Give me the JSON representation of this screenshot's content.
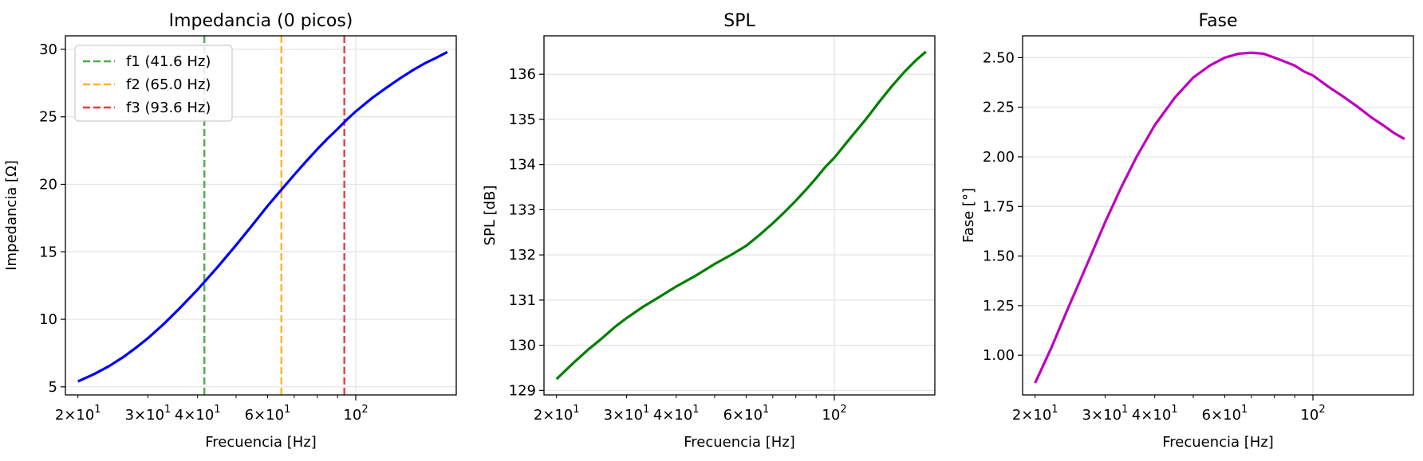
{
  "chart_data": [
    {
      "type": "line",
      "title": "Impedancia (0 picos)",
      "xlabel": "Frecuencia [Hz]",
      "ylabel": "Impedancia [Ω]",
      "xscale": "log",
      "xlim": [
        18.6,
        179
      ],
      "ylim": [
        4.4,
        31.0
      ],
      "yticks": [
        5,
        10,
        15,
        20,
        25,
        30
      ],
      "xtick_labels": [
        {
          "value": 20,
          "mantissa": "2",
          "exp": "1"
        },
        {
          "value": 30,
          "mantissa": "3",
          "exp": "1"
        },
        {
          "value": 40,
          "mantissa": "4",
          "exp": "1"
        },
        {
          "value": 60,
          "mantissa": "6",
          "exp": "1"
        },
        {
          "value": 100,
          "mantissa": "",
          "exp": "2"
        }
      ],
      "grid": true,
      "legend_position": "top-left",
      "series": [
        {
          "color": "#0000ff",
          "x": [
            20,
            22,
            24,
            26,
            28,
            30,
            33,
            36,
            40,
            45,
            50,
            55,
            60,
            65,
            70,
            75,
            80,
            85,
            90,
            95,
            100,
            110,
            120,
            130,
            140,
            150,
            160,
            170
          ],
          "y": [
            5.4,
            5.95,
            6.55,
            7.2,
            7.9,
            8.6,
            9.7,
            10.8,
            12.2,
            13.9,
            15.5,
            17.0,
            18.4,
            19.6,
            20.7,
            21.7,
            22.6,
            23.4,
            24.1,
            24.8,
            25.4,
            26.4,
            27.2,
            27.9,
            28.5,
            29.0,
            29.4,
            29.8
          ]
        }
      ],
      "vlines": [
        {
          "name": "f1 (41.6 Hz)",
          "x": 41.6,
          "color": "#2ca02c"
        },
        {
          "name": "f2 (65.0 Hz)",
          "x": 65.0,
          "color": "#ffa500"
        },
        {
          "name": "f3 (93.6 Hz)",
          "x": 93.6,
          "color": "#e8191b"
        }
      ]
    },
    {
      "type": "line",
      "title": "SPL",
      "xlabel": "Frecuencia [Hz]",
      "ylabel": "SPL [dB]",
      "xscale": "log",
      "xlim": [
        18.6,
        179
      ],
      "ylim": [
        128.9,
        136.85
      ],
      "yticks": [
        129,
        130,
        131,
        132,
        133,
        134,
        135,
        136
      ],
      "xtick_labels": [
        {
          "value": 20,
          "mantissa": "2",
          "exp": "1"
        },
        {
          "value": 30,
          "mantissa": "3",
          "exp": "1"
        },
        {
          "value": 40,
          "mantissa": "4",
          "exp": "1"
        },
        {
          "value": 60,
          "mantissa": "6",
          "exp": "1"
        },
        {
          "value": 100,
          "mantissa": "",
          "exp": "2"
        }
      ],
      "grid": true,
      "series": [
        {
          "color": "#008000",
          "x": [
            20,
            22,
            24,
            26,
            28,
            30,
            33,
            36,
            40,
            45,
            50,
            55,
            60,
            65,
            70,
            75,
            80,
            85,
            90,
            95,
            100,
            110,
            120,
            130,
            140,
            150,
            160,
            170
          ],
          "y": [
            129.25,
            129.6,
            129.9,
            130.15,
            130.4,
            130.6,
            130.85,
            131.05,
            131.3,
            131.55,
            131.8,
            132.0,
            132.2,
            132.45,
            132.7,
            132.95,
            133.2,
            133.45,
            133.7,
            133.95,
            134.15,
            134.6,
            135.0,
            135.4,
            135.75,
            136.05,
            136.3,
            136.5
          ]
        }
      ]
    },
    {
      "type": "line",
      "title": "Fase",
      "xlabel": "Frecuencia [Hz]",
      "ylabel": "Fase [°]",
      "xscale": "log",
      "xlim": [
        18.6,
        179
      ],
      "ylim": [
        0.8,
        2.61
      ],
      "yticks": [
        1.0,
        1.25,
        1.5,
        1.75,
        2.0,
        2.25,
        2.5
      ],
      "ytick_labels": [
        "1.00",
        "1.25",
        "1.50",
        "1.75",
        "2.00",
        "2.25",
        "2.50"
      ],
      "xtick_labels": [
        {
          "value": 20,
          "mantissa": "2",
          "exp": "1"
        },
        {
          "value": 30,
          "mantissa": "3",
          "exp": "1"
        },
        {
          "value": 40,
          "mantissa": "4",
          "exp": "1"
        },
        {
          "value": 60,
          "mantissa": "6",
          "exp": "1"
        },
        {
          "value": 100,
          "mantissa": "",
          "exp": "2"
        }
      ],
      "grid": true,
      "series": [
        {
          "color": "#bf00bf",
          "x": [
            20,
            22,
            24,
            26,
            28,
            30,
            33,
            36,
            40,
            45,
            50,
            55,
            60,
            65,
            70,
            75,
            80,
            85,
            90,
            95,
            100,
            110,
            120,
            130,
            140,
            150,
            160,
            170
          ],
          "y": [
            0.86,
            1.04,
            1.22,
            1.38,
            1.53,
            1.67,
            1.85,
            2.0,
            2.16,
            2.3,
            2.4,
            2.46,
            2.5,
            2.52,
            2.525,
            2.52,
            2.5,
            2.48,
            2.46,
            2.43,
            2.41,
            2.35,
            2.3,
            2.25,
            2.2,
            2.16,
            2.12,
            2.09
          ]
        }
      ]
    }
  ]
}
